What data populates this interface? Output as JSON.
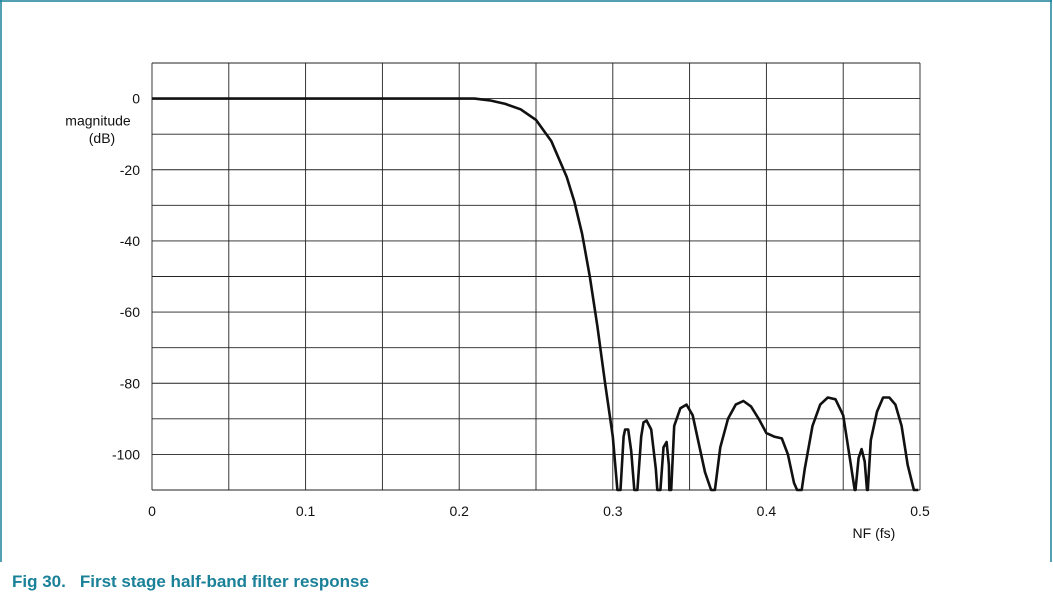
{
  "figure": {
    "number": "Fig 30.",
    "title": "First stage half-band filter response",
    "accent_color": "#1a8199"
  },
  "chart_data": {
    "type": "line",
    "title": "",
    "xlabel": "NF (fs)",
    "ylabel_line1": "magnitude",
    "ylabel_line2": "(dB)",
    "xlim": [
      0,
      0.5
    ],
    "ylim": [
      -110,
      10
    ],
    "x_ticks": [
      0,
      0.1,
      0.2,
      0.3,
      0.4,
      0.5
    ],
    "x_tick_labels": [
      "0",
      "0.1",
      "0.2",
      "0.3",
      "0.4",
      "0.5"
    ],
    "y_ticks": [
      0,
      -20,
      -40,
      -60,
      -80,
      -100
    ],
    "y_tick_labels": [
      "0",
      "-20",
      "-40",
      "-60",
      "-80",
      "-100"
    ],
    "x_grid_step": 0.05,
    "y_grid_step": 10,
    "grid": true,
    "line_color": "#111111",
    "series": [
      {
        "x": [
          0,
          0.05,
          0.1,
          0.15,
          0.2,
          0.21,
          0.22,
          0.23,
          0.24,
          0.25,
          0.26,
          0.27,
          0.275,
          0.28,
          0.285,
          0.29,
          0.295,
          0.3,
          0.303,
          0.305,
          0.307,
          0.308,
          0.31,
          0.312,
          0.314,
          0.3155,
          0.316,
          0.3185,
          0.32,
          0.322,
          0.325,
          0.328,
          0.329,
          0.3295,
          0.331,
          0.333,
          0.335,
          0.3365,
          0.3368,
          0.338,
          0.34,
          0.344,
          0.348,
          0.352,
          0.356,
          0.36,
          0.364,
          0.366,
          0.3665,
          0.37,
          0.375,
          0.38,
          0.385,
          0.39,
          0.395,
          0.4,
          0.405,
          0.41,
          0.414,
          0.418,
          0.42,
          0.4225,
          0.423,
          0.425,
          0.43,
          0.435,
          0.44,
          0.445,
          0.45,
          0.455,
          0.4575,
          0.458,
          0.46,
          0.462,
          0.464,
          0.4655,
          0.466,
          0.468,
          0.472,
          0.476,
          0.48,
          0.484,
          0.488,
          0.492,
          0.496,
          0.4988
        ],
        "y": [
          0,
          0,
          0,
          0,
          0,
          0,
          -0.5,
          -1.5,
          -3,
          -6,
          -12,
          -22,
          -29,
          -38,
          -50,
          -64,
          -80,
          -95,
          -110,
          -110,
          -95,
          -93,
          -93,
          -99,
          -110,
          -110,
          -110,
          -95,
          -91,
          -90.5,
          -93,
          -104,
          -110,
          -110,
          -110,
          -98,
          -96.5,
          -103,
          -110,
          -110,
          -92,
          -87,
          -86,
          -89,
          -97,
          -105,
          -110,
          -110,
          -110,
          -98,
          -90,
          -86,
          -85,
          -86.5,
          -90,
          -94,
          -95,
          -95.5,
          -100,
          -108,
          -110,
          -110,
          -110,
          -104,
          -92,
          -86,
          -84,
          -84.5,
          -89,
          -103,
          -110,
          -110,
          -101,
          -98.5,
          -102,
          -110,
          -110,
          -96,
          -88,
          -84,
          -84,
          -86,
          -92,
          -103,
          -110,
          -110
        ]
      }
    ]
  }
}
